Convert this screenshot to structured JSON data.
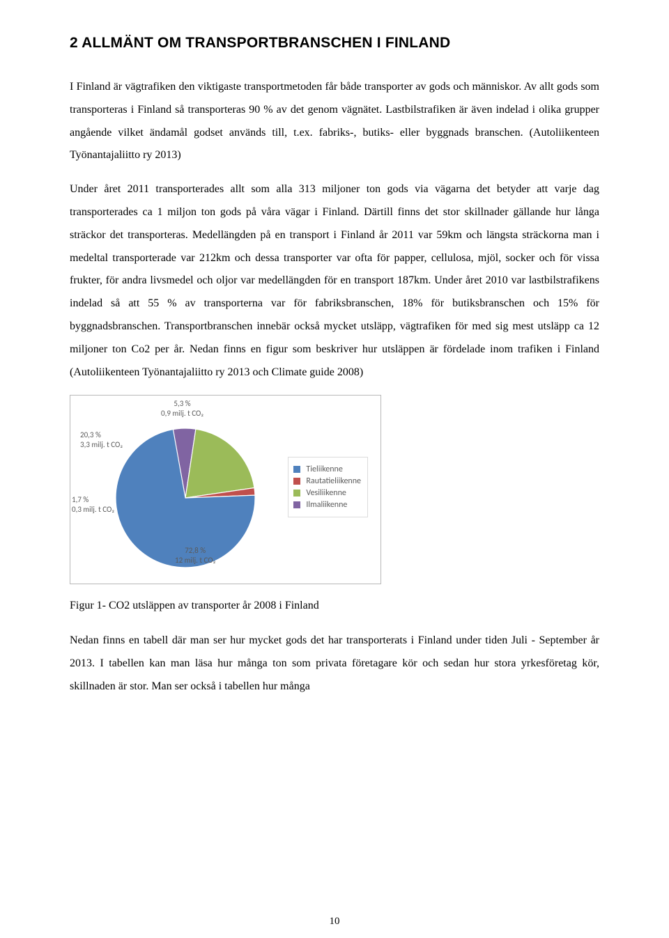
{
  "heading": "2  ALLMÄNT OM TRANSPORTBRANSCHEN I FINLAND",
  "paragraphs": {
    "p1": "I Finland är vägtrafiken den viktigaste transportmetoden får både transporter av gods och människor. Av allt gods som transporteras i Finland så transporteras 90 % av det genom vägnätet. Lastbilstrafiken är även indelad i olika grupper angående vilket ändamål godset används till, t.ex. fabriks-, butiks- eller byggnads branschen. (Autoliikenteen Työnantajaliitto ry 2013)",
    "p2": "Under året 2011 transporterades allt som alla 313 miljoner ton gods via vägarna det betyder att varje dag transporterades ca 1 miljon ton gods på våra vägar i Finland. Därtill finns det stor skillnader gällande hur långa sträckor det transporteras. Medellängden på en transport i Finland år 2011 var 59km och längsta sträckorna man i medeltal transporterade var 212km och dessa transporter var ofta för papper, cellulosa, mjöl, socker och för vissa frukter, för andra livsmedel och oljor var medellängden för en transport 187km. Under året 2010 var lastbilstrafikens indelad så att 55 % av transporterna var för fabriksbranschen, 18% för butiksbranschen och 15% för byggnadsbranschen. Transportbranschen innebär också mycket utsläpp, vägtrafiken för med sig mest utsläpp ca 12 miljoner ton Co2 per år. Nedan finns en figur som beskriver hur utsläppen är fördelade inom trafiken i Finland (Autoliikenteen Työnantajaliitto ry 2013 och Climate guide 2008)",
    "p3": "Nedan finns en tabell där man ser hur mycket gods det har transporterats i Finland under tiden Juli - September år 2013. I tabellen kan man läsa hur många ton som privata företagare kör och sedan hur stora yrkesföretag kör, skillnaden är stor. Man ser också i tabellen hur många"
  },
  "chart": {
    "type": "pie",
    "background_color": "#ffffff",
    "border_color": "#b8b8b8",
    "slices": [
      {
        "name": "Tieliikenne",
        "value": 72.8,
        "sub": "12 milj. t CO₂",
        "color": "#4f81bd"
      },
      {
        "name": "Rautatieliikenne",
        "value": 1.7,
        "sub": "0,3 milj. t CO₂",
        "color": "#c0504d"
      },
      {
        "name": "Vesiliikenne",
        "value": 20.3,
        "sub": "3,3 milj. t CO₂",
        "color": "#9bbb59"
      },
      {
        "name": "Ilmaliikenne",
        "value": 5.3,
        "sub": "0,9 milj. t CO₂",
        "color": "#8064a2"
      }
    ],
    "legend": [
      {
        "label": "Tieliikenne",
        "color": "#4f81bd"
      },
      {
        "label": "Rautatieliikenne",
        "color": "#c0504d"
      },
      {
        "label": "Vesiliikenne",
        "color": "#9bbb59"
      },
      {
        "label": "Ilmaliikenne",
        "color": "#8064a2"
      }
    ],
    "callouts": {
      "tie_pct": "72,8 %",
      "tie_sub": "12 milj. t CO₂",
      "rauta_pct": "1,7 %",
      "rauta_sub": "0,3 milj. t CO₂",
      "vesi_pct": "20,3 %",
      "vesi_sub": "3,3 milj. t CO₂",
      "ilma_pct": "5,3 %",
      "ilma_sub": "0,9 milj. t CO₂"
    },
    "label_fontsize": 11,
    "label_color": "#5a5a5a",
    "legend_fontsize": 12,
    "radius": 100
  },
  "figure_caption": "Figur 1- CO2 utsläppen av transporter år 2008 i Finland",
  "page_number": "10"
}
